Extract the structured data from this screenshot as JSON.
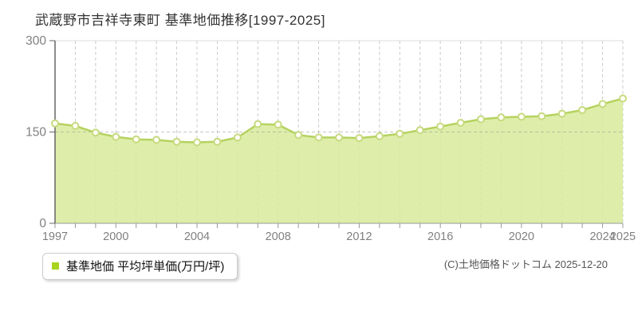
{
  "title": "武蔵野市吉祥寺東町 基準地価推移[1997-2025]",
  "legend": {
    "label": "基準地価 平均坪単価(万円/坪)",
    "marker_color": "#a8d41e"
  },
  "copyright": "(C)土地価格ドットコム 2025-12-20",
  "chart_data": {
    "type": "area",
    "title": "武蔵野市吉祥寺東町 基準地価推移[1997-2025]",
    "unit": "万円/坪",
    "x": [
      1997,
      1998,
      1999,
      2000,
      2001,
      2002,
      2003,
      2004,
      2005,
      2006,
      2007,
      2008,
      2009,
      2010,
      2011,
      2012,
      2013,
      2014,
      2015,
      2016,
      2017,
      2018,
      2019,
      2020,
      2021,
      2022,
      2023,
      2024,
      2025
    ],
    "series": [
      {
        "name": "基準地価 平均坪単価(万円/坪)",
        "values": [
          164,
          160,
          149,
          142,
          138,
          137,
          134,
          133,
          134,
          141,
          163,
          162,
          145,
          141,
          141,
          140,
          143,
          147,
          153,
          159,
          165,
          171,
          174,
          175,
          176,
          180,
          186,
          196,
          205
        ]
      }
    ],
    "ylim": [
      0,
      300
    ],
    "yticks": [
      0,
      150,
      300
    ],
    "xticks_labeled": [
      1997,
      2000,
      2004,
      2008,
      2012,
      2016,
      2020,
      2024,
      2025
    ],
    "grid_hline": 150,
    "grid": "vertical dashed line at every year; horizontal dashed line at 150",
    "legend_position": "bottom-left",
    "colors": {
      "area_fill": "#d8eb9b",
      "line": "#b6d25f",
      "marker_fill": "#fffef5",
      "marker_stroke": "#c6da7f",
      "grid": "#cccccc",
      "top_border": "#dddddd",
      "hline": "#999999",
      "axis": "#666666",
      "axis_bottom": "#999999",
      "tick_label": "#808080"
    }
  }
}
